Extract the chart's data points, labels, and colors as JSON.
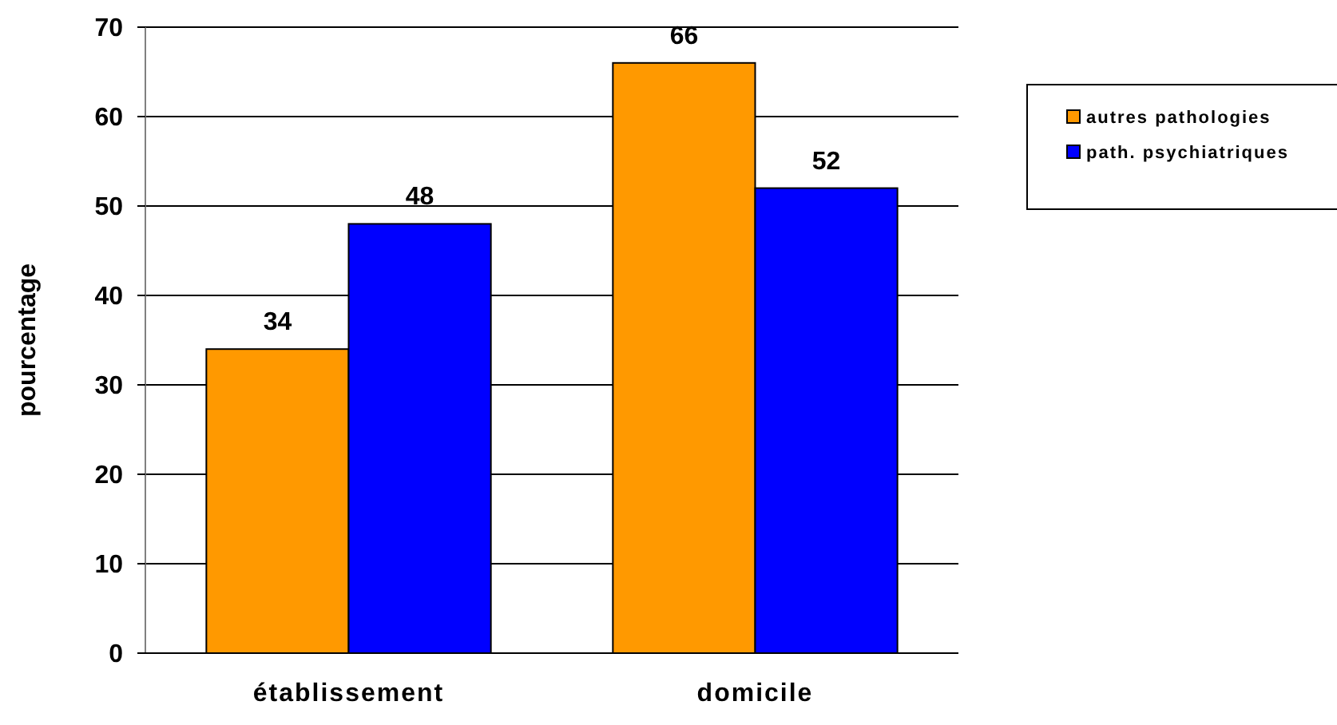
{
  "chart_data": {
    "type": "bar",
    "ylabel": "pourcentage",
    "categories": [
      "établissement",
      "domicile"
    ],
    "series": [
      {
        "name": "autres pathologies",
        "color": "#ff9900",
        "values": [
          34,
          66
        ]
      },
      {
        "name": "path. psychiatriques",
        "color": "#0000ff",
        "values": [
          48,
          52
        ]
      }
    ],
    "ylim": [
      0,
      70
    ],
    "yticks": [
      0,
      10,
      20,
      30,
      40,
      50,
      60,
      70
    ],
    "grid": "y",
    "legend": "right",
    "data_labels": true
  }
}
